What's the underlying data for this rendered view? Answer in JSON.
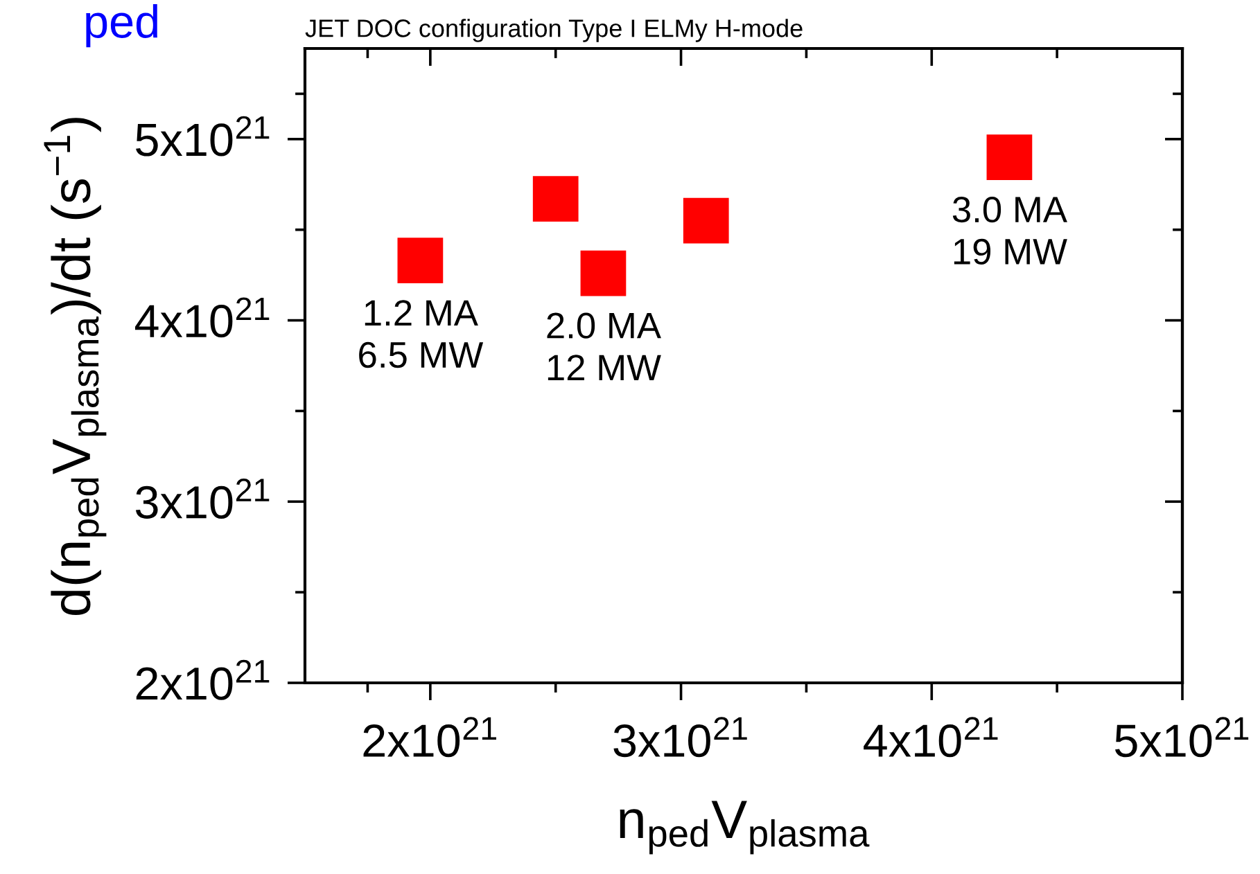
{
  "chart_data": {
    "type": "scatter",
    "title": "JET DOC configuration Type I ELMy H-mode",
    "xlabel": "n$_{ped}$V$_{plasma}$",
    "ylabel": "d(n$_{ped}$V$_{plasma}$)/dt (s$^{−1}$)",
    "x": [
      1.96e+21,
      2.5e+21,
      2.69e+21,
      3.1e+21,
      4.31e+21
    ],
    "series": [
      {
        "color": "#ff0000",
        "values": [
          4.33e+21,
          4.67e+21,
          4.26e+21,
          4.55e+21,
          4.9e+21
        ]
      }
    ],
    "marker": "square",
    "xlim": [
      1.5e+21,
      5e+21
    ],
    "ylim": [
      2e+21,
      5.5e+21
    ],
    "xticks": [
      {
        "value": 2e+21,
        "label": "2x10$^{21}$"
      },
      {
        "value": 3e+21,
        "label": "3x10$^{21}$"
      },
      {
        "value": 4e+21,
        "label": "4x10$^{21}$"
      },
      {
        "value": 5e+21,
        "label": "5x10$^{21}$"
      }
    ],
    "yticks": [
      {
        "value": 2e+21,
        "label": "2x10$^{21}$"
      },
      {
        "value": 3e+21,
        "label": "3x10$^{21}$"
      },
      {
        "value": 4e+21,
        "label": "4x10$^{21}$"
      },
      {
        "value": 5e+21,
        "label": "5x10$^{21}$"
      }
    ],
    "annotations": [
      {
        "text": "1.2 MA\n6.5 MW",
        "x": 1.96e+21,
        "y": 4.33e+21
      },
      {
        "text": "2.0 MA\n12 MW",
        "x": 2.69e+21,
        "y": 4.26e+21
      },
      {
        "text": "3.0 MA\n19 MW",
        "x": 4.31e+21,
        "y": 4.9e+21
      },
      "ped"
    ],
    "grid": false,
    "legend": false
  }
}
